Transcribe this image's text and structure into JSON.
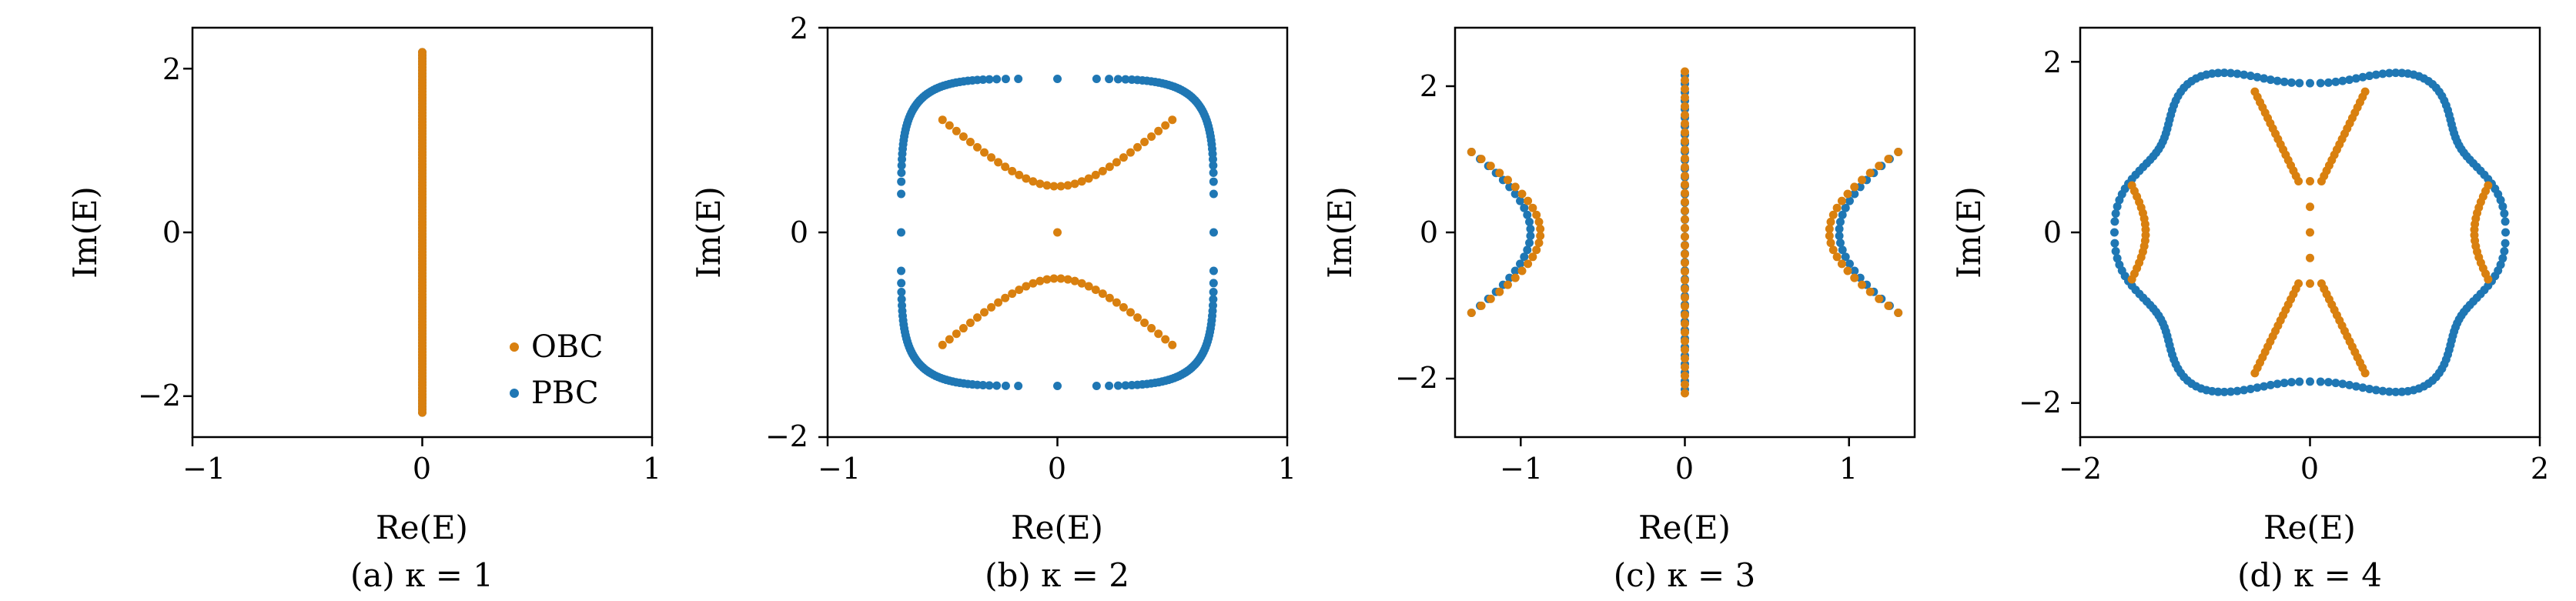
{
  "colors": {
    "obc": "#d9800f",
    "pbc": "#1f77b4"
  },
  "legend": {
    "obc_label": "OBC",
    "pbc_label": "PBC"
  },
  "chart_data": [
    {
      "type": "scatter",
      "caption": "(a) κ = 1",
      "xlabel": "Re(E)",
      "ylabel": "Im(E)",
      "xlim": [
        -1,
        1
      ],
      "ylim": [
        -2.5,
        2.5
      ],
      "xticks": [
        -1,
        0,
        1
      ],
      "xtick_labels": [
        "−1",
        "0",
        "1"
      ],
      "yticks": [
        -2,
        0,
        2
      ],
      "ytick_labels": [
        "−2",
        "0",
        "2"
      ],
      "legend_position": "lower-right",
      "series": [
        {
          "name": "OBC",
          "shape": "segment",
          "x": [
            0,
            0
          ],
          "y": [
            -2.2,
            2.2
          ],
          "n": 120
        },
        {
          "name": "PBC",
          "shape": "segment",
          "x": [
            0,
            0
          ],
          "y": [
            -2.2,
            2.2
          ],
          "n": 120
        }
      ]
    },
    {
      "type": "scatter",
      "caption": "(b) κ = 2",
      "xlabel": "Re(E)",
      "ylabel": "Im(E)",
      "xlim": [
        -1,
        1
      ],
      "ylim": [
        -2,
        2
      ],
      "xticks": [
        -1,
        0,
        1
      ],
      "xtick_labels": [
        "−1",
        "0",
        "1"
      ],
      "yticks": [
        -2,
        0,
        2
      ],
      "ytick_labels": [
        "−2",
        "0",
        "2"
      ],
      "series": [
        {
          "name": "OBC",
          "shape": "hyperbola",
          "x_range": [
            -0.5,
            0.5
          ],
          "y_min": 0.45,
          "y_max": 1.1,
          "center_point": [
            0,
            0
          ],
          "n": 34
        },
        {
          "name": "PBC",
          "shape": "superellipse",
          "rx": 0.68,
          "ry": 1.5,
          "power": 5,
          "n": 200
        }
      ]
    },
    {
      "type": "scatter",
      "caption": "(c) κ = 3",
      "xlabel": "Re(E)",
      "ylabel": "Im(E)",
      "xlim": [
        -1.4,
        1.4
      ],
      "ylim": [
        -2.8,
        2.8
      ],
      "xticks": [
        -1,
        0,
        1
      ],
      "xtick_labels": [
        "−1",
        "0",
        "1"
      ],
      "yticks": [
        -2,
        0,
        2
      ],
      "ytick_labels": [
        "−2",
        "0",
        "2"
      ],
      "series": [
        {
          "name": "OBC",
          "shape": "arcs",
          "vertex_x": 0.88,
          "end_x": 1.3,
          "end_y": 1.1,
          "segment_y": [
            -2.2,
            2.2
          ],
          "n": 24
        },
        {
          "name": "PBC",
          "shape": "arcs",
          "vertex_x": 0.94,
          "end_x": 1.3,
          "end_y": 1.1,
          "segment_y": [
            -2.15,
            2.15
          ],
          "n": 24
        }
      ]
    },
    {
      "type": "scatter",
      "caption": "(d) κ = 4",
      "xlabel": "Re(E)",
      "ylabel": "Im(E)",
      "xlim": [
        -2,
        2
      ],
      "ylim": [
        -2.4,
        2.4
      ],
      "xticks": [
        -2,
        0,
        2
      ],
      "xtick_labels": [
        "−2",
        "0",
        "2"
      ],
      "yticks": [
        -2,
        0,
        2
      ],
      "ytick_labels": [
        "−2",
        "0",
        "2"
      ],
      "series": [
        {
          "name": "OBC",
          "shape": "petals",
          "side_x": 1.55,
          "side_y": 0.55,
          "diag_from": [
            0.1,
            0.6
          ],
          "diag_to": [
            0.48,
            1.65
          ],
          "n": 18
        },
        {
          "name": "PBC",
          "shape": "flower",
          "r0": 1.72,
          "amp": 0.13,
          "lobes": 6,
          "n": 200
        }
      ]
    }
  ]
}
